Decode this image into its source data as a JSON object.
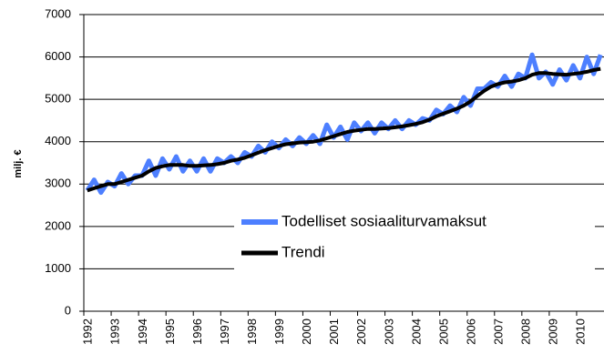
{
  "chart_data": {
    "type": "line",
    "y_label": "milj. €",
    "categories": [
      "1992",
      null,
      null,
      null,
      "1993",
      null,
      null,
      null,
      "1994",
      null,
      null,
      null,
      "1995",
      null,
      null,
      null,
      "1996",
      null,
      null,
      null,
      "1997",
      null,
      null,
      null,
      "1998",
      null,
      null,
      null,
      "1999",
      null,
      null,
      null,
      "2000",
      null,
      null,
      null,
      "2001",
      null,
      null,
      null,
      "2002",
      null,
      null,
      null,
      "2003",
      null,
      null,
      null,
      "2004",
      null,
      null,
      null,
      "2005",
      null,
      null,
      null,
      "2006",
      null,
      null,
      null,
      "2007",
      null,
      null,
      null,
      "2008",
      null,
      null,
      null,
      "2009",
      null,
      null,
      null,
      "2010",
      null,
      null,
      null
    ],
    "series": [
      {
        "name": "Todelliset sosiaaliturvamaksut",
        "color": "#4d7fff",
        "width": 5,
        "values": [
          2850,
          3100,
          2800,
          3050,
          2950,
          3250,
          3000,
          3200,
          3200,
          3550,
          3200,
          3600,
          3350,
          3650,
          3300,
          3550,
          3300,
          3600,
          3300,
          3600,
          3500,
          3650,
          3500,
          3750,
          3650,
          3900,
          3750,
          4000,
          3850,
          4050,
          3900,
          4100,
          3950,
          4150,
          3950,
          4400,
          4100,
          4350,
          4050,
          4450,
          4250,
          4450,
          4200,
          4450,
          4300,
          4500,
          4300,
          4500,
          4400,
          4550,
          4500,
          4750,
          4650,
          4850,
          4700,
          5050,
          4850,
          5250,
          5250,
          5400,
          5300,
          5550,
          5300,
          5600,
          5500,
          6050,
          5500,
          5650,
          5350,
          5700,
          5450,
          5800,
          5500,
          6000,
          5600,
          6050
        ]
      },
      {
        "name": "Trendi",
        "color": "#000000",
        "width": 4,
        "values": [
          2850,
          2900,
          2950,
          3000,
          3000,
          3050,
          3100,
          3150,
          3200,
          3300,
          3380,
          3420,
          3450,
          3450,
          3450,
          3430,
          3430,
          3440,
          3450,
          3470,
          3500,
          3550,
          3580,
          3620,
          3680,
          3740,
          3800,
          3850,
          3900,
          3940,
          3960,
          3980,
          3990,
          4000,
          4030,
          4080,
          4130,
          4180,
          4230,
          4260,
          4280,
          4300,
          4300,
          4310,
          4320,
          4340,
          4360,
          4390,
          4420,
          4460,
          4520,
          4600,
          4660,
          4720,
          4780,
          4850,
          4950,
          5080,
          5200,
          5300,
          5360,
          5400,
          5420,
          5450,
          5500,
          5580,
          5620,
          5620,
          5600,
          5590,
          5580,
          5600,
          5620,
          5650,
          5690,
          5720
        ]
      }
    ],
    "ylim": [
      0,
      7000
    ],
    "yticks": [
      0,
      1000,
      2000,
      3000,
      4000,
      5000,
      6000,
      7000
    ],
    "grid": true,
    "legend": "right"
  }
}
